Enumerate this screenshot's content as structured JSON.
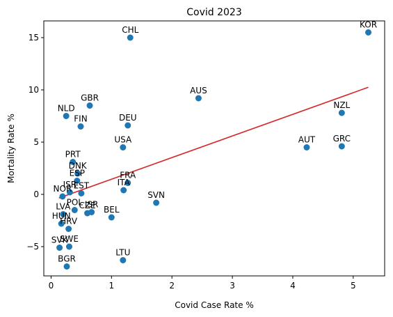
{
  "chart_data": {
    "type": "scatter",
    "title": "Covid 2023",
    "xlabel": "Covid Case Rate %",
    "ylabel": "Mortality Rate %",
    "xlim": [
      -0.12,
      5.52
    ],
    "ylim": [
      -7.8,
      16.6
    ],
    "xticks": [
      0,
      1,
      2,
      3,
      4,
      5
    ],
    "xtick_labels": [
      "0",
      "1",
      "2",
      "3",
      "4",
      "5"
    ],
    "yticks": [
      -5,
      0,
      5,
      10,
      15
    ],
    "ytick_labels": [
      "−5",
      "0",
      "5",
      "10",
      "15"
    ],
    "grid": false,
    "point_color": "#1f77b4",
    "trend_color": "#d62728",
    "trendline": {
      "x": [
        0.13,
        5.25
      ],
      "y": [
        -0.35,
        10.25
      ]
    },
    "points": [
      {
        "label": "KOR",
        "x": 5.25,
        "y": 15.5
      },
      {
        "label": "CHL",
        "x": 1.31,
        "y": 15.0
      },
      {
        "label": "AUS",
        "x": 2.44,
        "y": 9.2
      },
      {
        "label": "GBR",
        "x": 0.64,
        "y": 8.5
      },
      {
        "label": "NZL",
        "x": 4.81,
        "y": 7.8
      },
      {
        "label": "NLD",
        "x": 0.25,
        "y": 7.5
      },
      {
        "label": "DEU",
        "x": 1.27,
        "y": 6.6
      },
      {
        "label": "FIN",
        "x": 0.49,
        "y": 6.5
      },
      {
        "label": "USA",
        "x": 1.19,
        "y": 4.5
      },
      {
        "label": "GRC",
        "x": 4.81,
        "y": 4.6
      },
      {
        "label": "AUT",
        "x": 4.23,
        "y": 4.5
      },
      {
        "label": "PRT",
        "x": 0.36,
        "y": 3.1
      },
      {
        "label": "DNK",
        "x": 0.44,
        "y": 2.0
      },
      {
        "label": "ESP",
        "x": 0.43,
        "y": 1.3
      },
      {
        "label": "FRA",
        "x": 1.27,
        "y": 1.1
      },
      {
        "label": "ISR",
        "x": 0.31,
        "y": 0.2
      },
      {
        "label": "EST",
        "x": 0.5,
        "y": 0.1
      },
      {
        "label": "ITA",
        "x": 1.2,
        "y": 0.4
      },
      {
        "label": "NOR",
        "x": 0.19,
        "y": -0.2
      },
      {
        "label": "SVN",
        "x": 1.74,
        "y": -0.8
      },
      {
        "label": "POL",
        "x": 0.39,
        "y": -1.5
      },
      {
        "label": "CZE",
        "x": 0.6,
        "y": -1.8
      },
      {
        "label": "ISR",
        "x": 0.67,
        "y": -1.7
      },
      {
        "label": "LVA",
        "x": 0.2,
        "y": -1.9
      },
      {
        "label": "BEL",
        "x": 1.0,
        "y": -2.2
      },
      {
        "label": "HUN",
        "x": 0.17,
        "y": -2.8
      },
      {
        "label": "HRV",
        "x": 0.29,
        "y": -3.3
      },
      {
        "label": "SVK",
        "x": 0.14,
        "y": -5.1
      },
      {
        "label": "SWE",
        "x": 0.3,
        "y": -5.0
      },
      {
        "label": "LTU",
        "x": 1.19,
        "y": -6.3
      },
      {
        "label": "BGR",
        "x": 0.26,
        "y": -6.9
      }
    ]
  }
}
